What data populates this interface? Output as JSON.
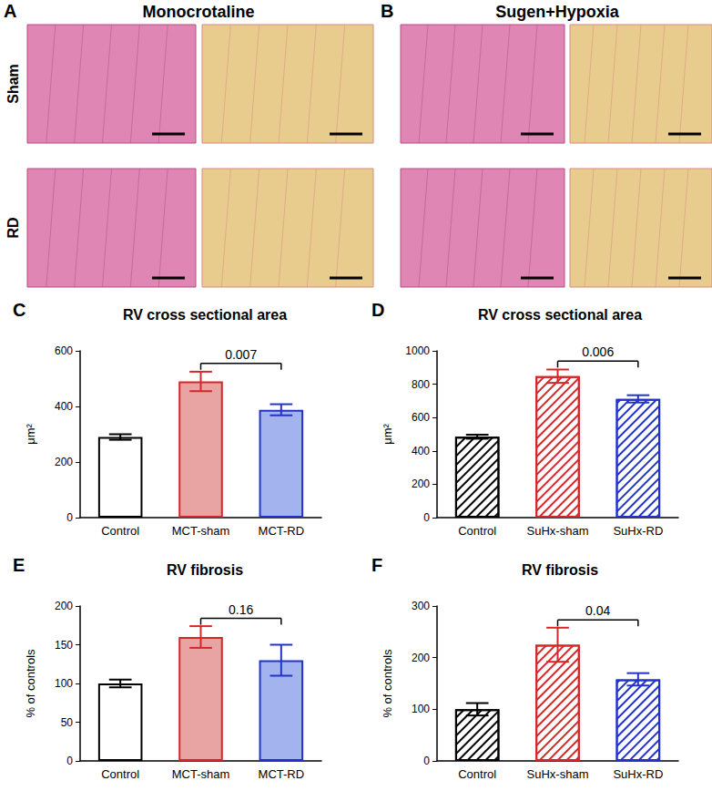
{
  "histology": {
    "panels": [
      {
        "panel": "A",
        "title": "Monocrotaline"
      },
      {
        "panel": "B",
        "title": "Sugen+Hypoxia"
      }
    ],
    "rows": [
      "Sham",
      "RD"
    ]
  },
  "chart_data": [
    {
      "panel": "C",
      "type": "bar",
      "title": "RV cross sectional area",
      "y_label": "μm²",
      "categories": [
        "Control",
        "MCT-sham",
        "MCT-RD"
      ],
      "values": [
        290,
        490,
        388
      ],
      "errors": [
        10,
        35,
        20
      ],
      "colors": [
        "#ffffff",
        "#e8a3a3",
        "#a3b3ee"
      ],
      "line_style": "solid",
      "ylim": [
        0,
        600
      ],
      "yticks": [
        0,
        200,
        400,
        600
      ],
      "grid": false,
      "annotations": [
        {
          "text": "0.007",
          "from": "MCT-sham",
          "to": "MCT-RD"
        }
      ]
    },
    {
      "panel": "D",
      "type": "bar",
      "title": "RV cross sectional area",
      "y_label": "μm²",
      "categories": [
        "Control",
        "SuHx-sham",
        "SuHx-RD"
      ],
      "values": [
        485,
        848,
        712
      ],
      "errors": [
        12,
        40,
        22
      ],
      "colors": [
        "#000000",
        "#d62728",
        "#2233cc"
      ],
      "line_style": "hatched",
      "ylim": [
        0,
        1000
      ],
      "yticks": [
        0,
        200,
        400,
        600,
        800,
        1000
      ],
      "grid": false,
      "annotations": [
        {
          "text": "0.006",
          "from": "SuHx-sham",
          "to": "SuHx-RD"
        }
      ]
    },
    {
      "panel": "E",
      "type": "bar",
      "title": "RV fibrosis",
      "y_label": "% of controls",
      "categories": [
        "Control",
        "MCT-sham",
        "MCT-RD"
      ],
      "values": [
        100,
        160,
        130
      ],
      "errors": [
        5,
        14,
        20
      ],
      "colors": [
        "#ffffff",
        "#e8a3a3",
        "#a3b3ee"
      ],
      "line_style": "solid",
      "ylim": [
        0,
        200
      ],
      "yticks": [
        0,
        50,
        100,
        150,
        200
      ],
      "grid": false,
      "annotations": [
        {
          "text": "0.16",
          "from": "MCT-sham",
          "to": "MCT-RD"
        }
      ]
    },
    {
      "panel": "F",
      "type": "bar",
      "title": "RV fibrosis",
      "y_label": "% of controls",
      "categories": [
        "Control",
        "SuHx-sham",
        "SuHx-RD"
      ],
      "values": [
        100,
        225,
        158
      ],
      "errors": [
        12,
        33,
        12
      ],
      "colors": [
        "#000000",
        "#d62728",
        "#2233cc"
      ],
      "line_style": "hatched",
      "ylim": [
        0,
        300
      ],
      "yticks": [
        0,
        100,
        200,
        300
      ],
      "grid": false,
      "annotations": [
        {
          "text": "0.04",
          "from": "SuHx-sham",
          "to": "SuHx-RD"
        }
      ]
    }
  ]
}
